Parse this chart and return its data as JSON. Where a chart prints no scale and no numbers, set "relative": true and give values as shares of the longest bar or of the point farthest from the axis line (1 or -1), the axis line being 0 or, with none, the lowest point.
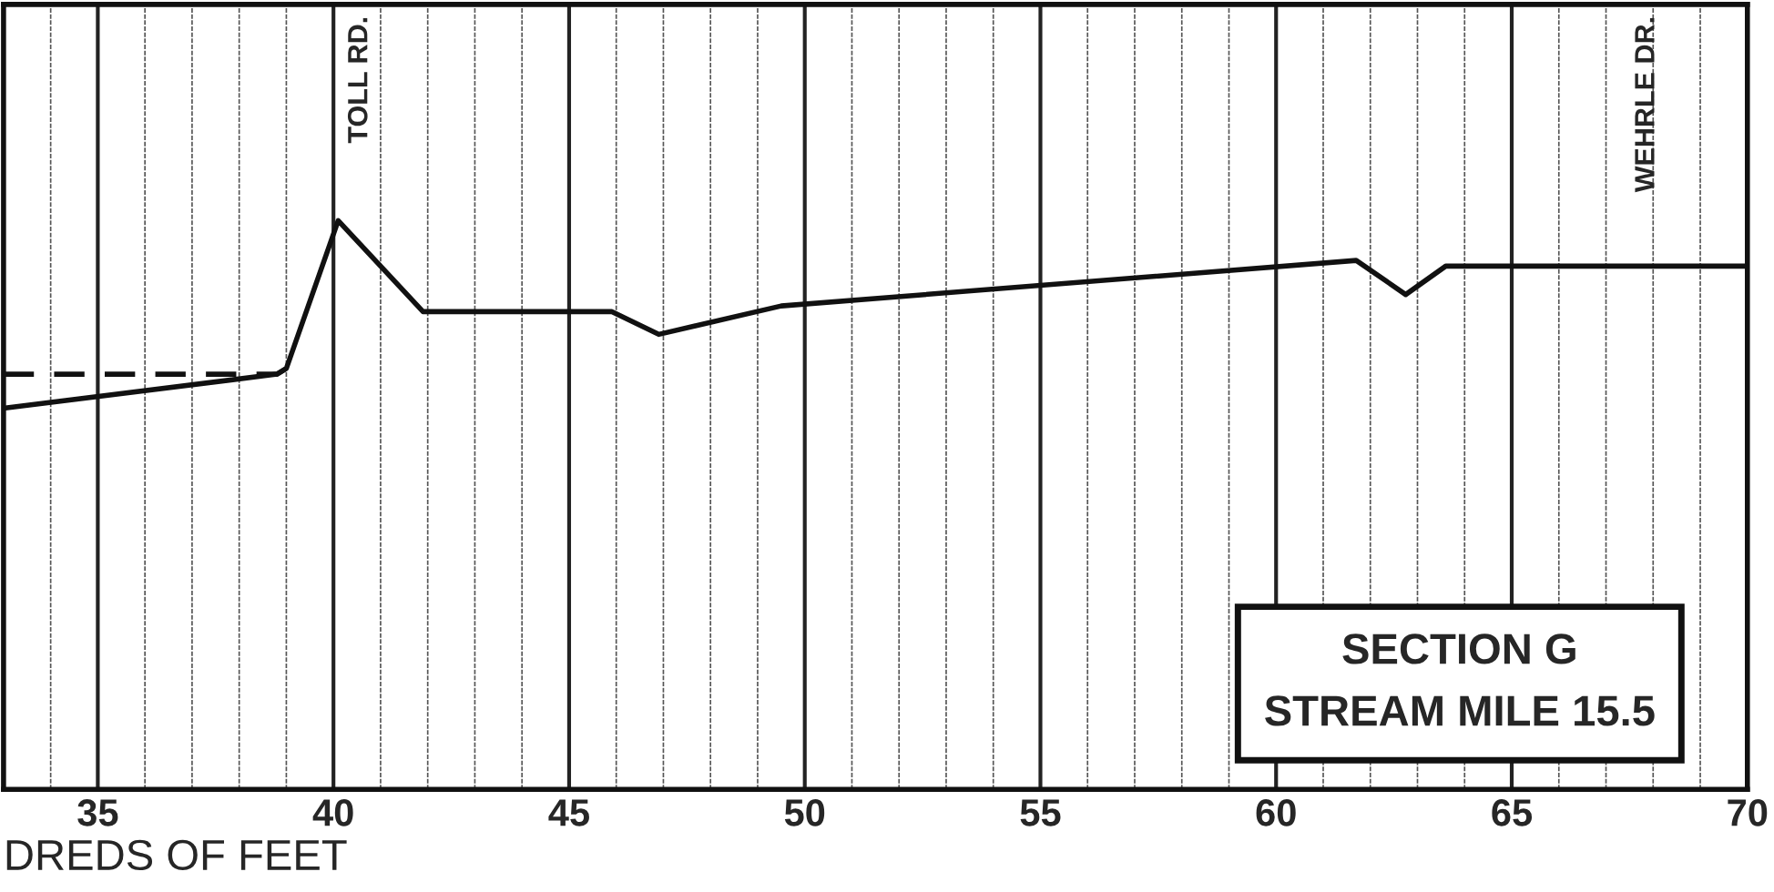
{
  "chart_data": {
    "type": "line",
    "relative": true,
    "xlabel": "DREDS OF FEET",
    "x": [
      33.0,
      38.8,
      39.0,
      40.1,
      41.9,
      45.9,
      46.9,
      49.5,
      61.7,
      62.75,
      63.6,
      70.0
    ],
    "xlim": [
      33,
      70
    ],
    "xticks": [
      35,
      40,
      45,
      50,
      55,
      60,
      65,
      70
    ],
    "series": [
      {
        "color": "#111111",
        "line_style": "solid",
        "values": [
          0.67,
          0.73,
          0.74,
          1.0,
          0.84,
          0.84,
          0.8,
          0.85,
          0.93,
          0.87,
          0.92,
          0.92
        ]
      },
      {
        "color": "#111111",
        "line_style": "dashed",
        "x": [
          33.0,
          38.8,
          39.0
        ],
        "values": [
          0.73,
          0.73,
          0.74
        ]
      }
    ],
    "annotations": [
      "TOLL RD.",
      "WEHRLE DR.",
      "SECTION G",
      "STREAM MILE 15.5"
    ],
    "grid": "x",
    "tick_labels": "x",
    "legend": false,
    "marker": "none"
  }
}
